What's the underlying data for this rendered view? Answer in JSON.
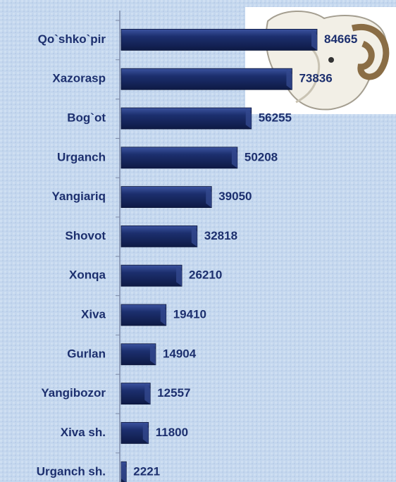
{
  "chart_data": {
    "type": "bar",
    "orientation": "horizontal",
    "color": "#1c2f6e",
    "categories": [
      "Qo`shko`pir",
      "Xazorasp",
      "Bog`ot",
      "Urganch",
      "Yangiariq",
      "Shovot",
      "Xonqa",
      "Xiva",
      "Gurlan",
      "Yangibozor",
      "Xiva sh.",
      "Urganch sh."
    ],
    "values": [
      84665,
      73836,
      56255,
      50208,
      39050,
      32818,
      26210,
      19410,
      14904,
      12557,
      11800,
      2221
    ]
  }
}
